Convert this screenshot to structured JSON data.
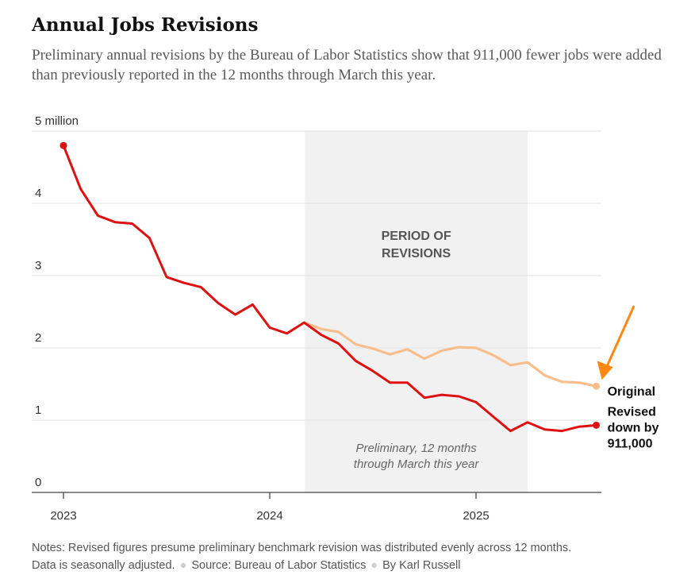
{
  "title": "Annual Jobs Revisions",
  "subtitle": "Preliminary annual revisions by the Bureau of Labor Statistics show that 911,000 fewer jobs were added than previously reported in the 12 months through March this year.",
  "notes": {
    "line1": "Notes: Revised figures presume preliminary benchmark revision was distributed evenly across 12 months.",
    "seasonal": "Data is seasonally adjusted.",
    "source": "Source: Bureau of Labor Statistics",
    "byline": "By Karl Russell"
  },
  "colors": {
    "revised": "#dd1111",
    "original": "#f9be8c",
    "band": "#f1f1f1",
    "arrow": "#ff8811",
    "grid": "#e2e2e2"
  },
  "chart_data": {
    "type": "line",
    "y_tick_labels": [
      "0",
      "1",
      "2",
      "3",
      "4",
      "5 million"
    ],
    "y_ticks": [
      0,
      1,
      2,
      3,
      4,
      5
    ],
    "ylim": [
      0,
      5
    ],
    "x_tick_labels": [
      "2023",
      "2024",
      "2025"
    ],
    "x_ticks": [
      2023,
      2024,
      2025
    ],
    "xlim": [
      2022.95,
      2025.8
    ],
    "band": {
      "x_start": 2024.17,
      "x_end": 2025.25,
      "label_line1": "PERIOD OF",
      "label_line2": "REVISIONS",
      "note_line1": "Preliminary, 12 months",
      "note_line2": "through March this year"
    },
    "series": [
      {
        "id": "revised",
        "label_lines": [
          "Revised",
          "down by",
          "911,000"
        ],
        "x": [
          2023.0,
          2023.083,
          2023.167,
          2023.25,
          2023.333,
          2023.417,
          2023.5,
          2023.583,
          2023.667,
          2023.75,
          2023.833,
          2023.917,
          2024.0,
          2024.083,
          2024.167,
          2024.25,
          2024.333,
          2024.417,
          2024.5,
          2024.583,
          2024.667,
          2024.75,
          2024.833,
          2024.917,
          2025.0,
          2025.083,
          2025.167,
          2025.25,
          2025.333,
          2025.417,
          2025.5,
          2025.583
        ],
        "values": [
          4.8,
          4.2,
          3.83,
          3.74,
          3.72,
          3.52,
          2.98,
          2.9,
          2.84,
          2.62,
          2.46,
          2.6,
          2.28,
          2.2,
          2.35,
          2.18,
          2.06,
          1.82,
          1.68,
          1.52,
          1.52,
          1.31,
          1.35,
          1.33,
          1.25,
          1.05,
          0.85,
          0.97,
          0.87,
          0.85,
          0.91,
          0.93
        ]
      },
      {
        "id": "original",
        "label_lines": [
          "Original"
        ],
        "x": [
          2024.167,
          2024.25,
          2024.333,
          2024.417,
          2024.5,
          2024.583,
          2024.667,
          2024.75,
          2024.833,
          2024.917,
          2025.0,
          2025.083,
          2025.167,
          2025.25,
          2025.333,
          2025.417,
          2025.5,
          2025.583
        ],
        "values": [
          2.35,
          2.26,
          2.22,
          2.05,
          1.99,
          1.91,
          1.98,
          1.85,
          1.96,
          2.01,
          2.0,
          1.9,
          1.76,
          1.8,
          1.62,
          1.53,
          1.52,
          1.47
        ]
      }
    ]
  }
}
